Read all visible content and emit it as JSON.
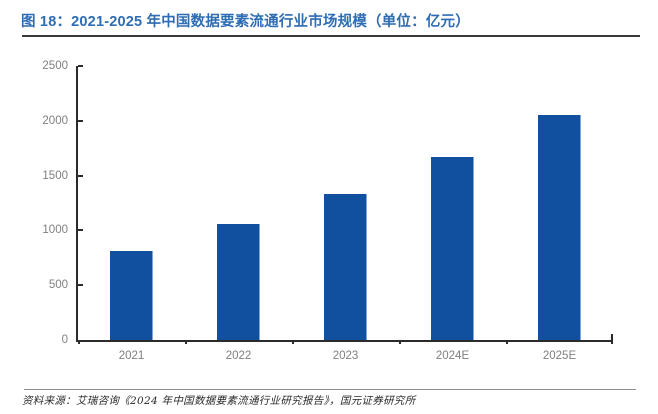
{
  "header": {
    "title": "图 18：2021-2025 年中国数据要素流通行业市场规模（单位：亿元）",
    "title_color": "#2e6cb3"
  },
  "chart_data": {
    "type": "bar",
    "title": "2021-2025 年中国数据要素流通行业市场规模",
    "unit": "亿元",
    "categories": [
      "2021",
      "2022",
      "2023",
      "2024E",
      "2025E"
    ],
    "values": [
      815,
      1055,
      1335,
      1670,
      2050
    ],
    "ylim": [
      0,
      2500
    ],
    "yticks": [
      0,
      500,
      1000,
      1500,
      2000,
      2500
    ],
    "xlabel": "",
    "ylabel": "",
    "grid": false,
    "legend": "none",
    "bar_color": "#11509e",
    "bar_edge_color": "#7ea6d8",
    "axis_color": "#2b2b2b",
    "tick_label_color": "#7f7f7f"
  },
  "footer": {
    "source": "资料来源：艾瑞咨询《2024 年中国数据要素流通行业研究报告》，国元证券研究所"
  }
}
